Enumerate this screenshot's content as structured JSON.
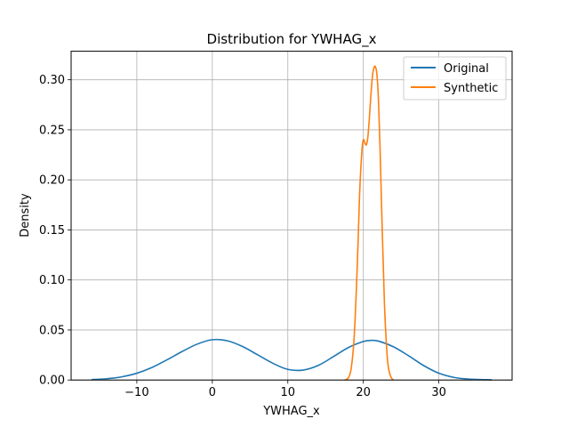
{
  "chart_data": {
    "type": "line",
    "title": "Distribution for YWHAG_x",
    "xlabel": "YWHAG_x",
    "ylabel": "Density",
    "xlim": [
      -18.7,
      39.7
    ],
    "ylim": [
      0,
      0.3285
    ],
    "xticks": [
      -10,
      0,
      10,
      20,
      30
    ],
    "xtick_labels": [
      "−10",
      "0",
      "10",
      "20",
      "30"
    ],
    "yticks": [
      0.0,
      0.05,
      0.1,
      0.15,
      0.2,
      0.25,
      0.3
    ],
    "ytick_labels": [
      "0.00",
      "0.05",
      "0.10",
      "0.15",
      "0.20",
      "0.25",
      "0.30"
    ],
    "grid": true,
    "legend_position": "top-right",
    "series": [
      {
        "name": "Original",
        "color": "#1f77b4",
        "x": [
          -16,
          -14,
          -12,
          -10,
          -8,
          -6,
          -4,
          -2,
          0,
          2,
          4,
          6,
          8,
          10,
          12,
          14,
          16,
          18,
          20,
          21,
          22,
          24,
          26,
          28,
          30,
          32,
          34,
          37
        ],
        "y": [
          0.0004,
          0.0013,
          0.0032,
          0.0068,
          0.0125,
          0.0202,
          0.0285,
          0.0359,
          0.0403,
          0.0392,
          0.0335,
          0.0252,
          0.0168,
          0.0106,
          0.0099,
          0.0145,
          0.0232,
          0.0324,
          0.0385,
          0.0396,
          0.0389,
          0.0332,
          0.0242,
          0.0144,
          0.0068,
          0.0026,
          0.0009,
          0.0002
        ]
      },
      {
        "name": "Synthetic",
        "color": "#ff7f0e",
        "x": [
          17.5,
          18.0,
          18.4,
          18.8,
          19.2,
          19.5,
          19.8,
          20.0,
          20.2,
          20.4,
          20.6,
          20.8,
          21.0,
          21.2,
          21.4,
          21.6,
          21.8,
          22.0,
          22.2,
          22.5,
          22.8,
          23.2,
          23.6,
          24.0
        ],
        "y": [
          0.0,
          0.002,
          0.012,
          0.045,
          0.115,
          0.185,
          0.228,
          0.24,
          0.237,
          0.235,
          0.243,
          0.262,
          0.285,
          0.303,
          0.312,
          0.313,
          0.305,
          0.28,
          0.235,
          0.15,
          0.075,
          0.02,
          0.004,
          0.0
        ]
      }
    ]
  }
}
